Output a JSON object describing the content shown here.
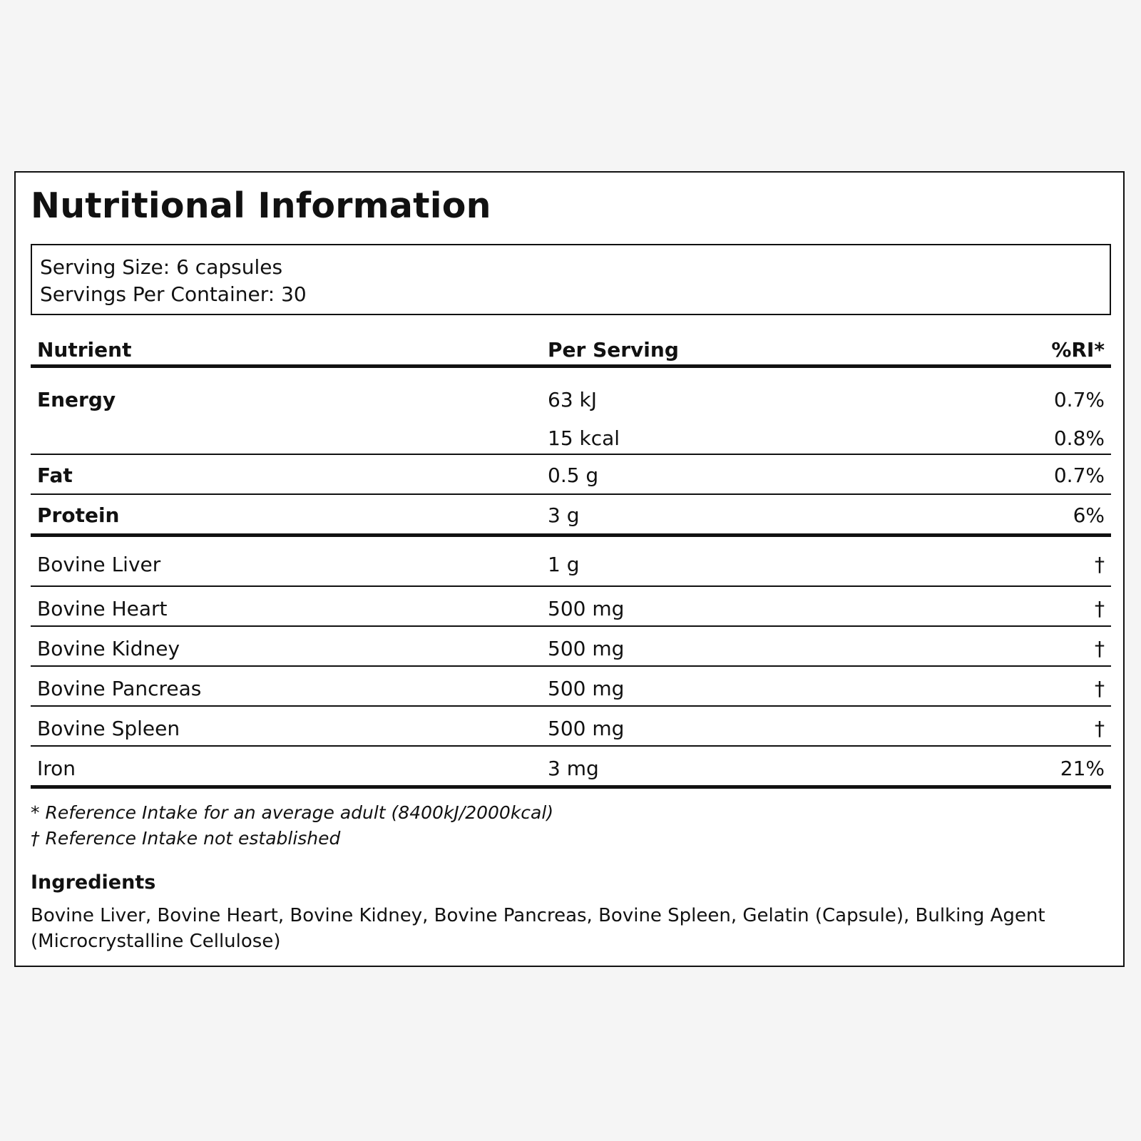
{
  "title": "Nutritional Information",
  "serving": {
    "size": "Serving Size: 6 capsules",
    "per_container": "Servings Per Container: 30"
  },
  "table": {
    "headers": {
      "nutrient": "Nutrient",
      "per_serving": "Per Serving",
      "ri": "%RI*"
    },
    "energy": {
      "name": "Energy",
      "kj": "63 kJ",
      "kj_ri": "0.7%",
      "kcal": "15 kcal",
      "kcal_ri": "0.8%"
    },
    "macros": [
      {
        "name": "Fat",
        "amount": "0.5 g",
        "ri": "0.7%"
      },
      {
        "name": "Protein",
        "amount": "3 g",
        "ri": "6%"
      }
    ],
    "ingredients": [
      {
        "name": "Bovine Liver",
        "amount": "1 g",
        "ri": "†"
      },
      {
        "name": "Bovine Heart",
        "amount": "500 mg",
        "ri": "†"
      },
      {
        "name": "Bovine Kidney",
        "amount": "500 mg",
        "ri": "†"
      },
      {
        "name": "Bovine Pancreas",
        "amount": "500 mg",
        "ri": "†"
      },
      {
        "name": "Bovine Spleen",
        "amount": "500 mg",
        "ri": "†"
      },
      {
        "name": "Iron",
        "amount": "3 mg",
        "ri": "21%"
      }
    ]
  },
  "footnotes": {
    "reference_intake": "* Reference Intake for an average adult (8400kJ/2000kcal)",
    "not_established": "† Reference Intake not established"
  },
  "ingredients_section": {
    "title": "Ingredients",
    "text": "Bovine Liver, Bovine Heart, Bovine Kidney, Bovine Pancreas, Bovine Spleen, Gelatin (Capsule), Bulking Agent (Microcrystalline Cellulose)"
  }
}
